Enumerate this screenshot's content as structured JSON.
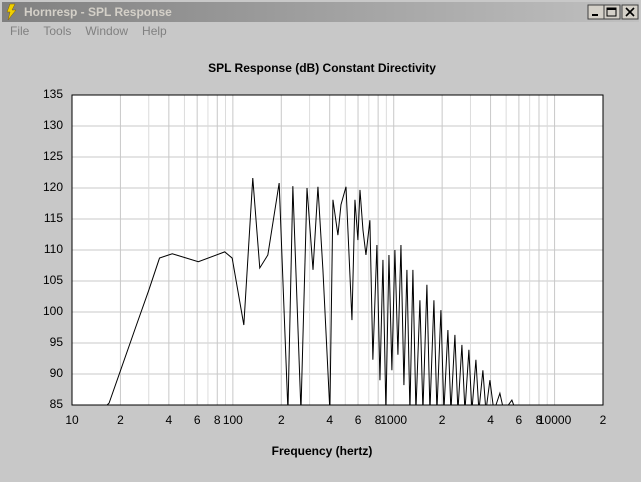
{
  "window": {
    "title": "Hornresp - SPL Response",
    "menu": [
      "File",
      "Tools",
      "Window",
      "Help"
    ]
  },
  "chart_data": {
    "type": "line",
    "title": "SPL Response (dB)   Constant Directivity",
    "x_label": "Frequency (hertz)",
    "x_scale": "log",
    "xlim": [
      10,
      20000
    ],
    "ylim": [
      85,
      135
    ],
    "xticks": [
      10,
      {
        "value": 20,
        "label": "2"
      },
      {
        "value": 40,
        "label": "4"
      },
      {
        "value": 60,
        "label": "6"
      },
      {
        "value": 80,
        "label": "8"
      },
      100,
      {
        "value": 200,
        "label": "2"
      },
      {
        "value": 400,
        "label": "4"
      },
      {
        "value": 600,
        "label": "6"
      },
      {
        "value": 800,
        "label": "8"
      },
      1000,
      {
        "value": 2000,
        "label": "2"
      },
      {
        "value": 4000,
        "label": "4"
      },
      {
        "value": 6000,
        "label": "6"
      },
      {
        "value": 8000,
        "label": "8"
      },
      10000,
      {
        "value": 20000,
        "label": "2"
      }
    ],
    "x_minor_ticks": [
      30,
      50,
      70,
      90,
      300,
      500,
      700,
      900,
      3000,
      5000,
      7000,
      9000
    ],
    "yticks": [
      85,
      90,
      95,
      100,
      105,
      110,
      115,
      120,
      125,
      130,
      135
    ],
    "grid": true,
    "series": [
      {
        "color": "#000000",
        "x": [
          15,
          17,
          25,
          30,
          35,
          42,
          61,
          89,
          99,
          117,
          133,
          147,
          165,
          194,
          220,
          236,
          265,
          289,
          315,
          338,
          363,
          401,
          419,
          450,
          470,
          505,
          550,
          574,
          599,
          617,
          644,
          672,
          711,
          742,
          786,
          821,
          857,
          894,
          934,
          974,
          1017,
          1062,
          1109,
          1157,
          1208,
          1261,
          1316,
          1374,
          1455,
          1519,
          1608,
          1679,
          1778,
          1856,
          1965,
          2051,
          2172,
          2268,
          2401,
          2506,
          2654,
          2771,
          2933,
          3062,
          3243,
          3385,
          3584,
          3742,
          3962,
          4195,
          4571,
          4839,
          5428,
          5748
        ],
        "values": [
          84,
          85.3,
          97.7,
          103.5,
          108.7,
          109.4,
          108.1,
          109.7,
          108.7,
          97.9,
          121.6,
          107.1,
          109.2,
          120.8,
          84,
          120.3,
          84,
          120,
          106.8,
          120.2,
          106.8,
          84,
          118.1,
          112.4,
          117.3,
          120.2,
          98.7,
          118.1,
          111.6,
          119.7,
          113.2,
          109.2,
          114.8,
          92.3,
          110.8,
          89,
          108.4,
          84,
          109.2,
          90.6,
          110,
          93.1,
          110.8,
          88.2,
          106.8,
          84,
          106.8,
          84,
          101.9,
          84,
          104.4,
          84,
          101.9,
          84,
          100.3,
          84,
          97.1,
          84,
          96.3,
          84,
          94.7,
          84,
          93.9,
          84,
          92.3,
          84,
          90.6,
          84,
          89,
          84,
          86.9,
          84,
          85.8,
          84
        ]
      }
    ]
  }
}
